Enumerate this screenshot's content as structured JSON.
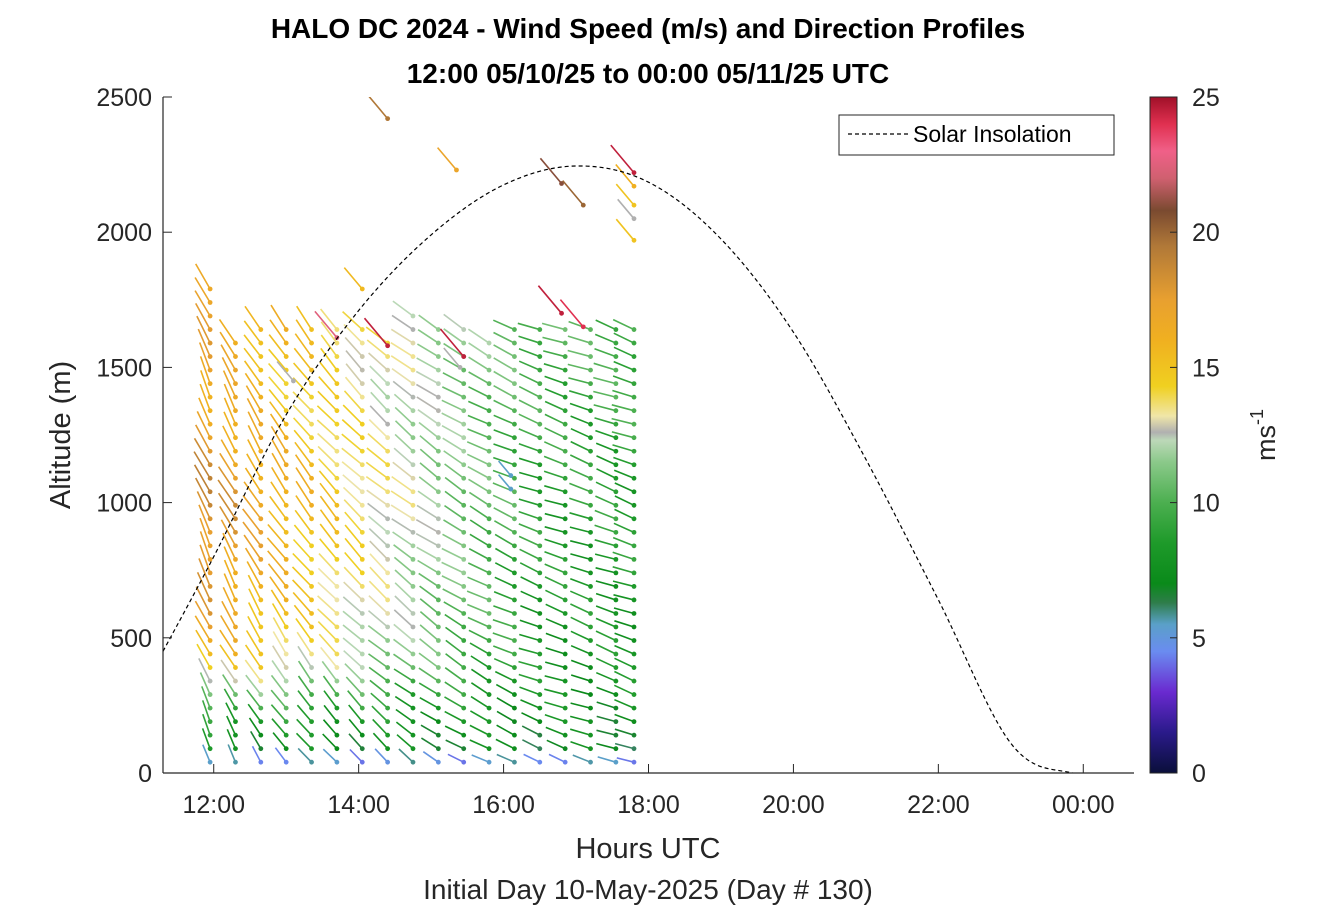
{
  "chart_data": {
    "type": "wind-barb-profile",
    "title": "HALO DC 2024 - Wind Speed (m/s) and Direction Profiles",
    "subtitle": "12:00 05/10/25 to 00:00 05/11/25  UTC",
    "xlabel": "Hours UTC",
    "ylabel": "Altitude (m)",
    "footer": "Initial Day 10-May-2025 (Day # 130)",
    "xlim": [
      11.3,
      24.7
    ],
    "ylim": [
      0,
      2500
    ],
    "x_ticks": [
      {
        "value": 12,
        "label": "12:00"
      },
      {
        "value": 14,
        "label": "14:00"
      },
      {
        "value": 16,
        "label": "16:00"
      },
      {
        "value": 18,
        "label": "18:00"
      },
      {
        "value": 20,
        "label": "20:00"
      },
      {
        "value": 22,
        "label": "22:00"
      },
      {
        "value": 24,
        "label": "00:00"
      }
    ],
    "y_ticks": [
      {
        "value": 0,
        "label": "0"
      },
      {
        "value": 500,
        "label": "500"
      },
      {
        "value": 1000,
        "label": "1000"
      },
      {
        "value": 1500,
        "label": "1500"
      },
      {
        "value": 2000,
        "label": "2000"
      },
      {
        "value": 2500,
        "label": "2500"
      }
    ],
    "legend": {
      "location": "top-right",
      "entries": [
        {
          "label": "Solar Insolation",
          "style": "dashed",
          "color": "#000000"
        }
      ]
    },
    "colorbar": {
      "label": "ms-1",
      "label_base": "ms",
      "label_exp": "-1",
      "range": [
        0,
        25
      ],
      "ticks": [
        {
          "value": 0,
          "label": "0"
        },
        {
          "value": 5,
          "label": "5"
        },
        {
          "value": 10,
          "label": "10"
        },
        {
          "value": 15,
          "label": "15"
        },
        {
          "value": 20,
          "label": "20"
        },
        {
          "value": 25,
          "label": "25"
        }
      ],
      "stops": [
        {
          "v": 0,
          "c": "#0a0f3a"
        },
        {
          "v": 1.5,
          "c": "#2a1a8a"
        },
        {
          "v": 3,
          "c": "#6a2ad0"
        },
        {
          "v": 4.5,
          "c": "#6a8cf0"
        },
        {
          "v": 5.5,
          "c": "#5aa0c8"
        },
        {
          "v": 6.3,
          "c": "#2e7d4a"
        },
        {
          "v": 7,
          "c": "#0a8a1a"
        },
        {
          "v": 8.5,
          "c": "#1e9a2a"
        },
        {
          "v": 10,
          "c": "#4caf50"
        },
        {
          "v": 11.5,
          "c": "#8bc98a"
        },
        {
          "v": 12.3,
          "c": "#bcd8b8"
        },
        {
          "v": 12.6,
          "c": "#b0b0b0"
        },
        {
          "v": 13.2,
          "c": "#f0e6a8"
        },
        {
          "v": 14.3,
          "c": "#f0d020"
        },
        {
          "v": 16,
          "c": "#f0b020"
        },
        {
          "v": 17.5,
          "c": "#e8a030"
        },
        {
          "v": 19.5,
          "c": "#b07838"
        },
        {
          "v": 20.8,
          "c": "#7a4a30"
        },
        {
          "v": 22,
          "c": "#d06070"
        },
        {
          "v": 23,
          "c": "#f06088"
        },
        {
          "v": 24,
          "c": "#e03050"
        },
        {
          "v": 25,
          "c": "#a01028"
        }
      ]
    },
    "solar_insolation_curve": {
      "x": [
        11.3,
        12,
        13,
        14,
        15,
        16,
        17,
        18,
        19,
        20,
        21,
        22,
        23,
        23.85,
        24.7
      ],
      "y": [
        450,
        800,
        1325,
        1710,
        1990,
        2175,
        2245,
        2185,
        1975,
        1630,
        1160,
        640,
        110,
        0,
        0
      ]
    },
    "profiles": {
      "times": [
        11.95,
        12.3,
        12.65,
        13.0,
        13.35,
        13.7,
        14.05,
        14.4,
        14.75,
        15.1,
        15.45,
        15.8,
        16.15,
        16.5,
        16.85,
        17.2,
        17.55,
        17.8
      ],
      "top_altitudes": [
        1820,
        1620,
        1640,
        1650,
        1670,
        1660,
        1650,
        1620,
        1700,
        1640,
        1660,
        1620,
        1650,
        1650,
        1680,
        1660,
        1650,
        1680
      ],
      "altitude_step": 50,
      "speed_profile": {
        "alt": [
          40,
          80,
          200,
          300,
          400,
          550,
          800,
          1000,
          1200,
          1400,
          1600,
          1800
        ],
        "early": [
          5,
          7.5,
          9,
          12,
          15.5,
          17,
          18,
          18.5,
          17.5,
          16.5,
          17,
          17.5
        ],
        "late": [
          5,
          7,
          7.5,
          7.8,
          8,
          8.2,
          8.5,
          8.8,
          9,
          9.5,
          10,
          10.5
        ]
      },
      "direction_from_deg": {
        "early": 335,
        "late": 290
      },
      "upper_points": [
        {
          "t": 14.4,
          "alt": 2420,
          "speed": 19.5
        },
        {
          "t": 15.35,
          "alt": 2230,
          "speed": 17
        },
        {
          "t": 16.8,
          "alt": 2180,
          "speed": 21
        },
        {
          "t": 17.1,
          "alt": 2100,
          "speed": 20
        },
        {
          "t": 17.8,
          "alt": 2220,
          "speed": 24.5
        },
        {
          "t": 17.8,
          "alt": 2170,
          "speed": 16
        },
        {
          "t": 17.8,
          "alt": 2100,
          "speed": 15
        },
        {
          "t": 17.8,
          "alt": 2050,
          "speed": 12.6
        },
        {
          "t": 17.8,
          "alt": 1970,
          "speed": 15
        },
        {
          "t": 14.05,
          "alt": 1790,
          "speed": 15.5
        },
        {
          "t": 13.7,
          "alt": 1610,
          "speed": 22.5
        },
        {
          "t": 14.4,
          "alt": 1580,
          "speed": 24.5
        },
        {
          "t": 15.45,
          "alt": 1540,
          "speed": 24.5
        },
        {
          "t": 16.8,
          "alt": 1700,
          "speed": 24.5
        },
        {
          "t": 17.1,
          "alt": 1650,
          "speed": 24
        },
        {
          "t": 16.1,
          "alt": 1100,
          "speed": 5.5
        },
        {
          "t": 16.1,
          "alt": 1050,
          "speed": 5.5
        },
        {
          "t": 15.4,
          "alt": 1500,
          "speed": 12.6
        },
        {
          "t": 13.1,
          "alt": 1450,
          "speed": 12.6
        }
      ]
    }
  }
}
